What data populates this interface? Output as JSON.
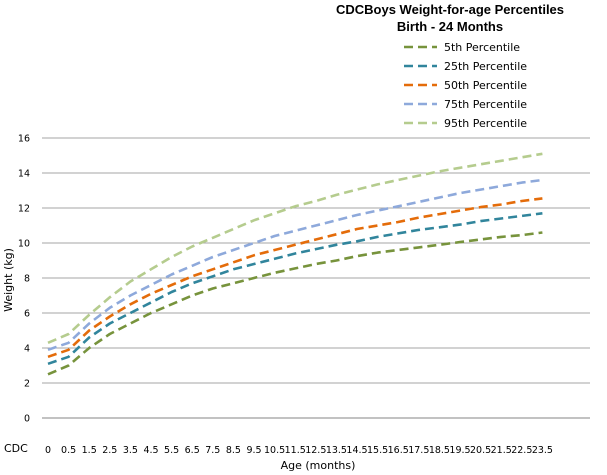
{
  "chart_data": {
    "type": "line",
    "title": "CDCBoys Weight-for-age Percentiles",
    "subtitle": "Birth - 24 Months",
    "xlabel": "Age (months)",
    "ylabel": "Weight (kg)",
    "footnote": "CDC",
    "ylim": [
      0,
      16
    ],
    "yticks": [
      "0",
      "2",
      "4",
      "6",
      "8",
      "10",
      "12",
      "14",
      "16"
    ],
    "x": [
      0,
      0.5,
      1.5,
      2.5,
      3.5,
      4.5,
      5.5,
      6.5,
      7.5,
      8.5,
      9.5,
      10.5,
      11.5,
      12.5,
      13.5,
      14.5,
      15.5,
      16.5,
      17.5,
      18.5,
      19.5,
      20.5,
      21.5,
      22.5,
      23.5
    ],
    "x_tick_labels": [
      "0",
      "0.5",
      "1.5",
      "2.5",
      "3.5",
      "4.5",
      "5.5",
      "6.5",
      "7.5",
      "8.5",
      "9.5",
      "10.5",
      "11.5",
      "12.5",
      "13.5",
      "14.5",
      "15.5",
      "16.5",
      "17.5",
      "18.5",
      "19.5",
      "20.5",
      "21.5",
      "22.5",
      "23.5"
    ],
    "grid": true,
    "legend_position": "top-right",
    "series": [
      {
        "name": "5th Percentile",
        "color": "#77933c",
        "values": [
          2.5,
          3.0,
          4.0,
          4.8,
          5.4,
          6.0,
          6.5,
          7.0,
          7.4,
          7.7,
          8.0,
          8.3,
          8.55,
          8.8,
          9.0,
          9.25,
          9.45,
          9.6,
          9.75,
          9.9,
          10.05,
          10.2,
          10.35,
          10.45,
          10.6
        ]
      },
      {
        "name": "25th Percentile",
        "color": "#31859c",
        "values": [
          3.1,
          3.5,
          4.6,
          5.4,
          6.0,
          6.6,
          7.2,
          7.7,
          8.1,
          8.5,
          8.8,
          9.1,
          9.4,
          9.65,
          9.9,
          10.1,
          10.35,
          10.55,
          10.75,
          10.9,
          11.05,
          11.25,
          11.4,
          11.55,
          11.7
        ]
      },
      {
        "name": "50th Percentile",
        "color": "#e46c0a",
        "values": [
          3.5,
          3.9,
          5.0,
          5.8,
          6.5,
          7.1,
          7.6,
          8.1,
          8.5,
          8.9,
          9.3,
          9.6,
          9.9,
          10.2,
          10.5,
          10.8,
          11.0,
          11.2,
          11.45,
          11.65,
          11.85,
          12.05,
          12.2,
          12.4,
          12.55
        ]
      },
      {
        "name": "75th Percentile",
        "color": "#8ea9db",
        "values": [
          3.9,
          4.3,
          5.4,
          6.3,
          7.0,
          7.6,
          8.2,
          8.7,
          9.2,
          9.6,
          10.0,
          10.4,
          10.7,
          11.0,
          11.3,
          11.6,
          11.85,
          12.1,
          12.35,
          12.6,
          12.85,
          13.05,
          13.25,
          13.45,
          13.6
        ]
      },
      {
        "name": "95th Percentile",
        "color": "#b5cc8e",
        "values": [
          4.3,
          4.8,
          5.9,
          6.9,
          7.8,
          8.5,
          9.2,
          9.8,
          10.3,
          10.8,
          11.3,
          11.7,
          12.1,
          12.4,
          12.75,
          13.05,
          13.35,
          13.6,
          13.85,
          14.1,
          14.3,
          14.5,
          14.7,
          14.9,
          15.1
        ]
      }
    ]
  }
}
